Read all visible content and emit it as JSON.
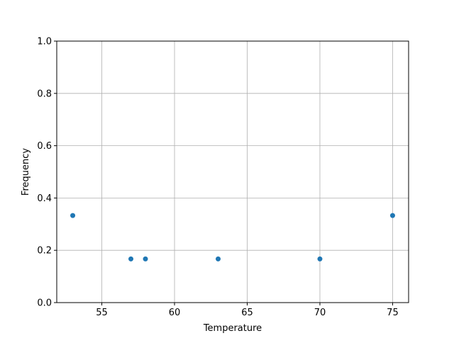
{
  "chart_data": {
    "type": "scatter",
    "title": "",
    "xlabel": "Temperature",
    "ylabel": "Frequency",
    "xlim": [
      51.9,
      76.1
    ],
    "ylim": [
      0.0,
      1.0
    ],
    "x_ticks": [
      55,
      60,
      65,
      70,
      75
    ],
    "x_tick_labels": [
      "55",
      "60",
      "65",
      "70",
      "75"
    ],
    "y_ticks": [
      0.0,
      0.2,
      0.4,
      0.6,
      0.8,
      1.0
    ],
    "y_tick_labels": [
      "0.0",
      "0.2",
      "0.4",
      "0.6",
      "0.8",
      "1.0"
    ],
    "grid": true,
    "marker_color": "#1f77b4",
    "points": [
      {
        "x": 53,
        "y": 0.333
      },
      {
        "x": 57,
        "y": 0.167
      },
      {
        "x": 58,
        "y": 0.167
      },
      {
        "x": 63,
        "y": 0.167
      },
      {
        "x": 70,
        "y": 0.167
      },
      {
        "x": 75,
        "y": 0.333
      }
    ]
  }
}
